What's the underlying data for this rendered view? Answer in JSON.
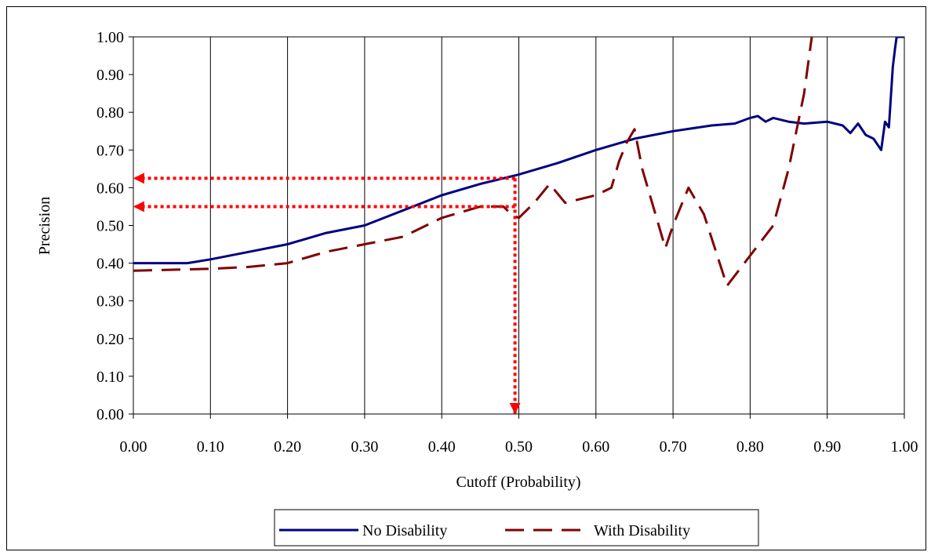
{
  "chart_data": {
    "type": "line",
    "title": "",
    "xlabel": "Cutoff (Probability)",
    "ylabel": "Precision",
    "xlim": [
      0,
      1
    ],
    "ylim": [
      0,
      1
    ],
    "x_ticks": [
      "0.00",
      "0.10",
      "0.20",
      "0.30",
      "0.40",
      "0.50",
      "0.60",
      "0.70",
      "0.80",
      "0.90",
      "1.00"
    ],
    "y_ticks": [
      "0.00",
      "0.10",
      "0.20",
      "0.30",
      "0.40",
      "0.50",
      "0.60",
      "0.70",
      "0.80",
      "0.90",
      "1.00"
    ],
    "grid": "vertical",
    "legend_position": "bottom",
    "series": [
      {
        "name": "No Disability",
        "color": "#000080",
        "style": "solid",
        "x": [
          0.0,
          0.07,
          0.1,
          0.15,
          0.2,
          0.25,
          0.3,
          0.35,
          0.4,
          0.45,
          0.5,
          0.55,
          0.6,
          0.65,
          0.7,
          0.75,
          0.78,
          0.8,
          0.81,
          0.82,
          0.83,
          0.85,
          0.87,
          0.9,
          0.92,
          0.93,
          0.94,
          0.95,
          0.96,
          0.97,
          0.975,
          0.98,
          0.985,
          0.988,
          0.99,
          0.995,
          1.0
        ],
        "values": [
          0.4,
          0.4,
          0.41,
          0.43,
          0.45,
          0.48,
          0.5,
          0.54,
          0.58,
          0.61,
          0.635,
          0.665,
          0.7,
          0.73,
          0.75,
          0.765,
          0.77,
          0.785,
          0.79,
          0.775,
          0.785,
          0.775,
          0.77,
          0.775,
          0.765,
          0.745,
          0.77,
          0.74,
          0.73,
          0.7,
          0.775,
          0.76,
          0.92,
          0.97,
          1.0,
          1.0,
          1.0
        ]
      },
      {
        "name": "With Disability",
        "color": "#800000",
        "style": "dashed",
        "x": [
          0.0,
          0.1,
          0.15,
          0.2,
          0.25,
          0.3,
          0.35,
          0.4,
          0.45,
          0.48,
          0.49,
          0.5,
          0.52,
          0.54,
          0.56,
          0.58,
          0.6,
          0.62,
          0.63,
          0.64,
          0.65,
          0.66,
          0.69,
          0.7,
          0.72,
          0.74,
          0.77,
          0.8,
          0.83,
          0.85,
          0.87,
          0.88
        ],
        "values": [
          0.38,
          0.385,
          0.39,
          0.4,
          0.43,
          0.45,
          0.47,
          0.52,
          0.55,
          0.55,
          0.53,
          0.52,
          0.56,
          0.61,
          0.56,
          0.57,
          0.58,
          0.6,
          0.67,
          0.72,
          0.755,
          0.65,
          0.44,
          0.5,
          0.6,
          0.53,
          0.34,
          0.42,
          0.5,
          0.65,
          0.85,
          1.0
        ]
      }
    ],
    "annotations": [
      {
        "type": "arrow",
        "color": "#ff0000",
        "style": "dotted",
        "from": [
          0.495,
          0.625
        ],
        "to": [
          0.0,
          0.625
        ]
      },
      {
        "type": "arrow",
        "color": "#ff0000",
        "style": "dotted",
        "from": [
          0.495,
          0.55
        ],
        "to": [
          0.0,
          0.55
        ]
      },
      {
        "type": "arrow",
        "color": "#ff0000",
        "style": "dotted",
        "from": [
          0.495,
          0.625
        ],
        "to": [
          0.495,
          0.0
        ]
      }
    ]
  }
}
